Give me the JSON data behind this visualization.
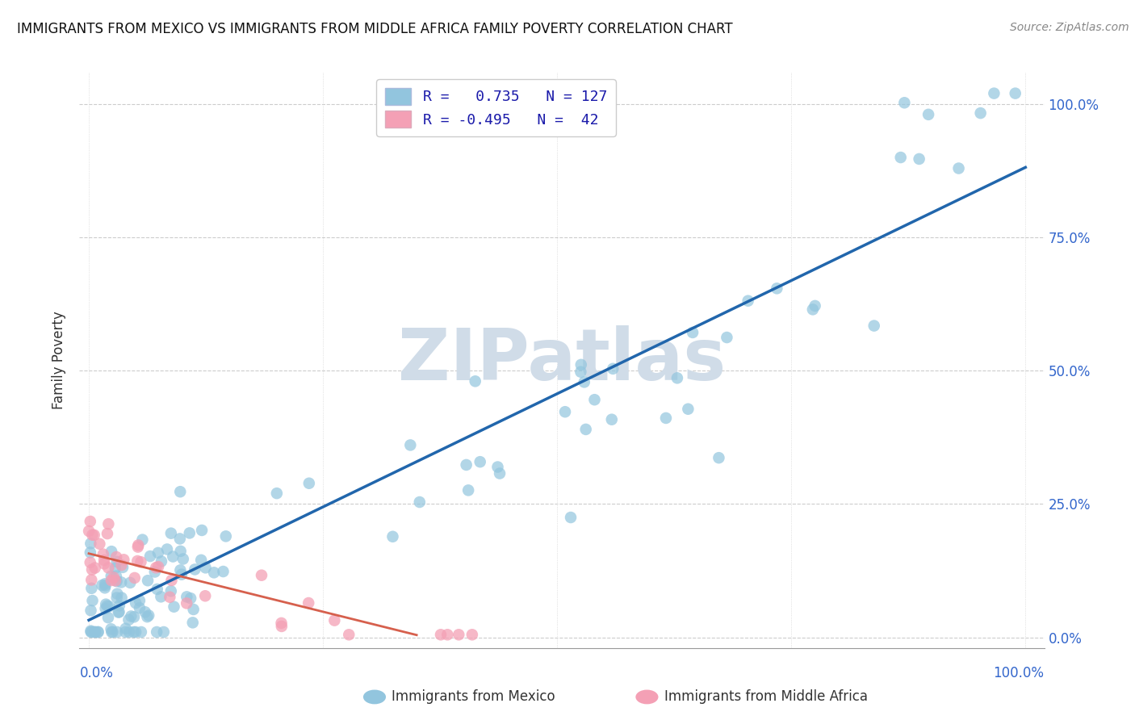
{
  "title": "IMMIGRANTS FROM MEXICO VS IMMIGRANTS FROM MIDDLE AFRICA FAMILY POVERTY CORRELATION CHART",
  "source": "Source: ZipAtlas.com",
  "ylabel": "Family Poverty",
  "blue_color": "#92c5de",
  "blue_color_alpha": 0.7,
  "pink_color": "#f4a0b5",
  "pink_color_alpha": 0.75,
  "blue_line_color": "#2166ac",
  "pink_line_color": "#d6604d",
  "watermark_color": "#d0dce8",
  "watermark_text": "ZIPatlas",
  "legend_R1": "R =   0.735",
  "legend_N1": "N = 127",
  "legend_R2": "R = -0.495",
  "legend_N2": "N =  42",
  "legend_text_color": "#1a1aaa",
  "bottom_legend1": "Immigrants from Mexico",
  "bottom_legend2": "Immigrants from Middle Africa",
  "ytick_positions": [
    0.0,
    0.25,
    0.5,
    0.75,
    1.0
  ],
  "ytick_labels": [
    "0.0%",
    "25.0%",
    "50.0%",
    "75.0%",
    "100.0%"
  ],
  "xmin": 0.0,
  "xmax": 1.0,
  "ymin": 0.0,
  "ymax": 1.0
}
